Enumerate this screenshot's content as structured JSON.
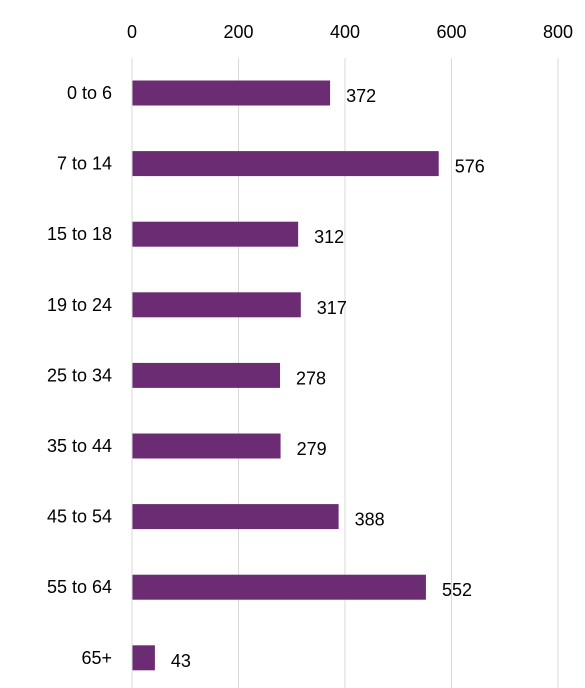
{
  "chart_data": {
    "type": "bar",
    "orientation": "horizontal",
    "title": "",
    "xlabel": "",
    "ylabel": "",
    "categories": [
      "0 to 6",
      "7 to 14",
      "15 to 18",
      "19 to 24",
      "25 to 34",
      "35 to 44",
      "45 to 54",
      "55 to 64",
      "65+"
    ],
    "values": [
      372,
      576,
      312,
      317,
      278,
      279,
      388,
      552,
      43
    ],
    "data_labels": [
      "372",
      "576",
      "312",
      "317",
      "278",
      "279",
      "388",
      "552",
      "43"
    ],
    "xlim": [
      0,
      800
    ],
    "x_ticks": [
      0,
      200,
      400,
      600,
      800
    ],
    "x_tick_labels": [
      "0",
      "200",
      "400",
      "600",
      "800"
    ],
    "x_axis_position": "top",
    "grid": "vertical",
    "legend": "none",
    "bar_color": "#6b2c73",
    "grid_color": "#d9d9d9"
  }
}
